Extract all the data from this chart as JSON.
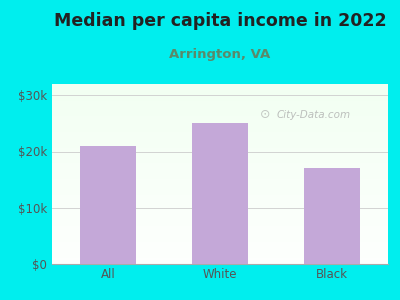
{
  "title": "Median per capita income in 2022",
  "subtitle": "Arrington, VA",
  "categories": [
    "All",
    "White",
    "Black"
  ],
  "values": [
    21000,
    25000,
    17000
  ],
  "bar_color": "#c4a8d8",
  "title_color": "#222222",
  "subtitle_color": "#5a8a6a",
  "bg_color": "#00EEEE",
  "yticks": [
    0,
    10000,
    20000,
    30000
  ],
  "ytick_labels": [
    "$0",
    "$10k",
    "$20k",
    "$30k"
  ],
  "ylim": [
    0,
    32000
  ],
  "watermark": "City-Data.com",
  "title_fontsize": 12.5,
  "subtitle_fontsize": 9.5,
  "tick_fontsize": 8.5,
  "axis_label_color": "#555555"
}
